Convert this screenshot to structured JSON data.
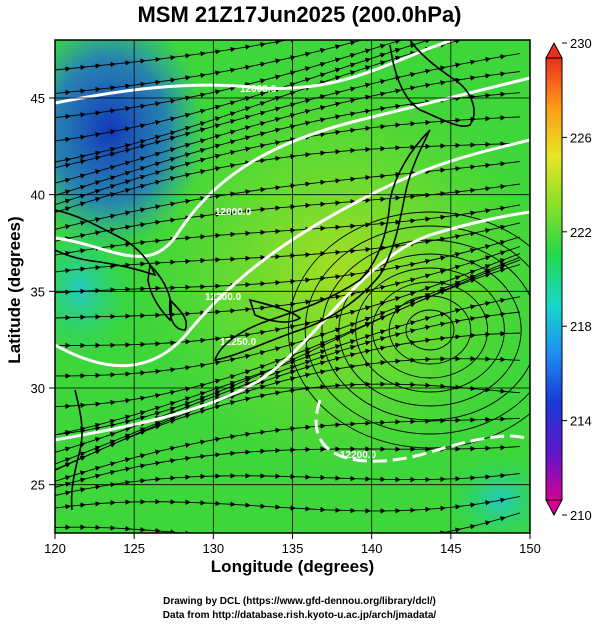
{
  "title": "MSM 21Z17Jun2025 (200.0hPa)",
  "axes": {
    "xlabel": "Longitude (degrees)",
    "ylabel": "Latitude  (degrees)",
    "xlim": [
      120,
      150
    ],
    "ylim": [
      22.5,
      48
    ],
    "xticks": [
      "120",
      "125",
      "130",
      "135",
      "140",
      "145",
      "150"
    ],
    "yticks": [
      "25",
      "30",
      "35",
      "40",
      "45"
    ]
  },
  "colorbar": {
    "min": 210,
    "max": 230,
    "tick_labels": [
      "230",
      "226",
      "222",
      "218",
      "214",
      "210"
    ],
    "colors": [
      "#d40098",
      "#5a18c8",
      "#1a3ad8",
      "#1e8ff0",
      "#18d8c8",
      "#22d84a",
      "#8ae028",
      "#e6e626",
      "#ff9a18",
      "#e8301a"
    ]
  },
  "contours": {
    "labels": [
      "12000.0",
      "12000.0",
      "12200.0",
      "12250.0",
      "12200.0"
    ]
  },
  "credits": {
    "line1": "Drawing by DCL (https://www.gfd-dennou.org/library/dcl/)",
    "line2": "Data from http://database.rish.kyoto-u.ac.jp/arch/jmadata/"
  }
}
